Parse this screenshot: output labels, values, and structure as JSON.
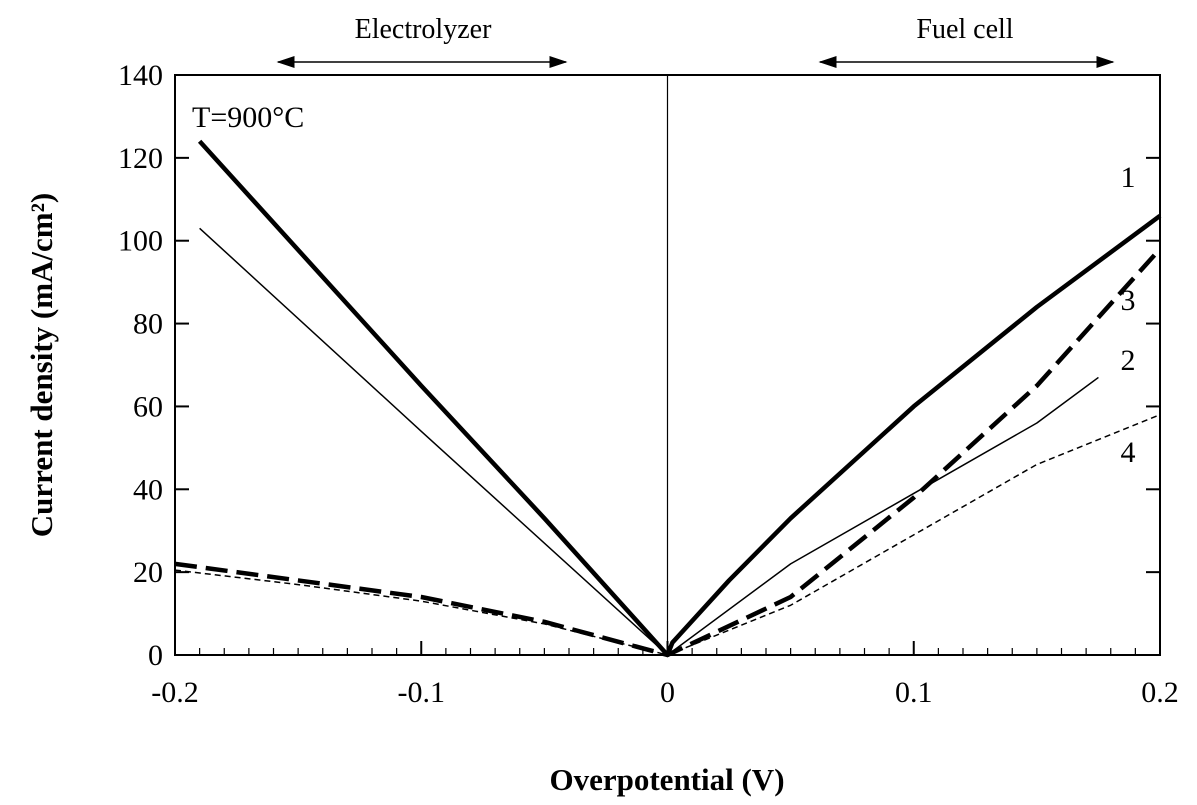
{
  "chart_data": {
    "type": "line",
    "x_label": "Overpotential (V)",
    "y_label": "Current density (mA/cm²)",
    "annotation": "T=900°C",
    "region_left": "Electrolyzer",
    "region_right": "Fuel cell",
    "xlim": [
      -0.2,
      0.2
    ],
    "xticks": [
      -0.2,
      -0.1,
      0,
      0.1,
      0.2
    ],
    "ylim": [
      0,
      140
    ],
    "yticks": [
      0,
      20,
      40,
      60,
      80,
      100,
      120,
      140
    ],
    "grid": false,
    "series": [
      {
        "name": "1",
        "color": "#000000",
        "style": "thick-solid",
        "x": [
          -0.19,
          -0.1,
          -0.05,
          0,
          0.002,
          0.025,
          0.05,
          0.1,
          0.15,
          0.2
        ],
        "values": [
          124,
          65,
          33,
          0,
          3,
          18,
          33,
          60,
          84,
          106
        ]
      },
      {
        "name": "2",
        "color": "#000000",
        "style": "thin-solid",
        "x": [
          -0.19,
          -0.1,
          0,
          0.05,
          0.1,
          0.15,
          0.175
        ],
        "values": [
          103,
          54,
          0,
          22,
          39,
          56,
          67
        ]
      },
      {
        "name": "3",
        "color": "#000000",
        "style": "thick-dashed",
        "x": [
          -0.2,
          -0.15,
          -0.1,
          -0.05,
          0,
          0.05,
          0.1,
          0.15,
          0.2
        ],
        "values": [
          22,
          18,
          14,
          8,
          0,
          14,
          38,
          65,
          98
        ]
      },
      {
        "name": "4",
        "color": "#000000",
        "style": "thin-dashed",
        "x": [
          -0.2,
          -0.15,
          -0.1,
          -0.05,
          0,
          0.05,
          0.1,
          0.15,
          0.2
        ],
        "values": [
          20.5,
          17,
          13,
          7.5,
          0,
          12,
          29,
          46,
          58
        ]
      }
    ]
  }
}
